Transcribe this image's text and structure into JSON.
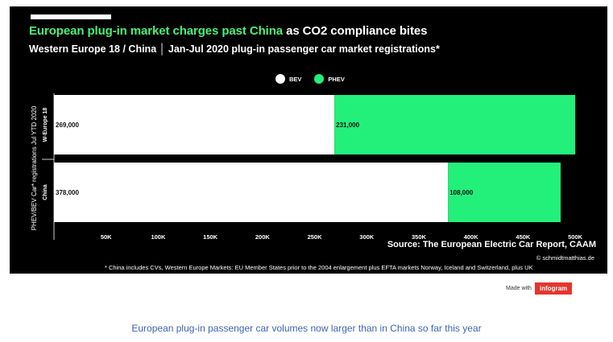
{
  "title": {
    "highlight": "European plug-in market charges past China",
    "rest": " as CO2 compliance bites"
  },
  "subtitle": "Western Europe 18 / China │ Jan-Jul 2020 plug-in passenger car market registrations*",
  "legend": [
    {
      "label": "BEV",
      "color": "#ffffff"
    },
    {
      "label": "PHEV",
      "color": "#22f07a"
    }
  ],
  "source": "Source: The European Electric Car Report, CAAM",
  "credit": "© schmidtmatthias.de",
  "footnote": "* China includes CVs, Western Europe Markets: EU Member States prior to the 2004 enlargement plus EFTA markets Norway, Iceland and Switzerland, plus UK",
  "made_with": {
    "text": "Made with",
    "brand": "infogram"
  },
  "caption": "European plug-in passenger car volumes now larger than in China so far this year",
  "chart_data": {
    "type": "bar",
    "orientation": "horizontal",
    "stacked": true,
    "categories": [
      "W-Europe 18",
      "China"
    ],
    "series": [
      {
        "name": "BEV",
        "values": [
          269000,
          378000
        ],
        "labels": [
          "269,000",
          "378,000"
        ],
        "color": "#ffffff"
      },
      {
        "name": "PHEV",
        "values": [
          231000,
          108000
        ],
        "labels": [
          "231,000",
          "108,000"
        ],
        "color": "#22f07a"
      }
    ],
    "ylabel": "PHEV/BEV Car* registrations Jul YTD 2020",
    "xlim": [
      0,
      520000
    ],
    "xticks": [
      50000,
      100000,
      150000,
      200000,
      250000,
      300000,
      350000,
      400000,
      450000,
      500000
    ],
    "xtick_labels": [
      "50K",
      "100K",
      "150K",
      "200K",
      "250K",
      "300K",
      "350K",
      "400K",
      "450K",
      "500K"
    ],
    "legend_position": "top-center",
    "grid": false
  }
}
